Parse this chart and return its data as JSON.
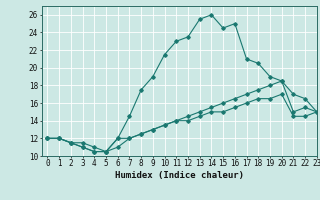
{
  "title": "",
  "xlabel": "Humidex (Indice chaleur)",
  "bg_color": "#cce8e4",
  "grid_color": "#ffffff",
  "line_color": "#1a7870",
  "xlim": [
    -0.5,
    23
  ],
  "ylim": [
    10,
    27
  ],
  "xticks": [
    0,
    1,
    2,
    3,
    4,
    5,
    6,
    7,
    8,
    9,
    10,
    11,
    12,
    13,
    14,
    15,
    16,
    17,
    18,
    19,
    20,
    21,
    22,
    23
  ],
  "yticks": [
    10,
    12,
    14,
    16,
    18,
    20,
    22,
    24,
    26
  ],
  "series": [
    {
      "x": [
        0,
        1,
        2,
        3,
        4,
        5,
        6,
        7,
        8,
        9,
        10,
        11,
        12,
        13,
        14,
        15,
        16,
        17,
        18,
        19,
        20,
        21,
        22,
        23
      ],
      "y": [
        12,
        12,
        11.5,
        11,
        10.5,
        10.5,
        12,
        14.5,
        17.5,
        19,
        21.5,
        23,
        23.5,
        25.5,
        26,
        24.5,
        25,
        21,
        20.5,
        19,
        18.5,
        17,
        16.5,
        15
      ]
    },
    {
      "x": [
        0,
        1,
        2,
        3,
        4,
        5,
        6,
        7,
        8,
        9,
        10,
        11,
        12,
        13,
        14,
        15,
        16,
        17,
        18,
        19,
        20,
        21,
        22,
        23
      ],
      "y": [
        12,
        12,
        11.5,
        11,
        10.5,
        10.5,
        12,
        12,
        12.5,
        13,
        13.5,
        14,
        14.5,
        15,
        15.5,
        16,
        16.5,
        17,
        17.5,
        18,
        18.5,
        15,
        15.5,
        15
      ]
    },
    {
      "x": [
        0,
        1,
        2,
        3,
        4,
        5,
        6,
        7,
        8,
        9,
        10,
        11,
        12,
        13,
        14,
        15,
        16,
        17,
        18,
        19,
        20,
        21,
        22,
        23
      ],
      "y": [
        12,
        12,
        11.5,
        11.5,
        11,
        10.5,
        11,
        12,
        12.5,
        13,
        13.5,
        14,
        14,
        14.5,
        15,
        15,
        15.5,
        16,
        16.5,
        16.5,
        17,
        14.5,
        14.5,
        15
      ]
    }
  ]
}
